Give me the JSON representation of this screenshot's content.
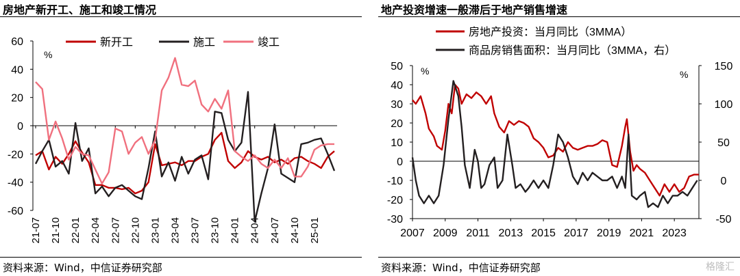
{
  "left_panel": {
    "title": "房地产新开工、施工和竣工情况",
    "source": "资料来源：Wind，中信证券研究部"
  },
  "right_panel": {
    "title": "地产投资增速一般滞后于地产销售增速",
    "source": "资料来源：Wind，中信证券研究部"
  },
  "watermark": "格隆汇",
  "chart_data": [
    {
      "type": "line",
      "title": "房地产新开工、施工和竣工情况",
      "ylabel": "%",
      "ylim": [
        -60,
        60
      ],
      "yticks": [
        60,
        40,
        20,
        0,
        -20,
        -40,
        -60
      ],
      "x_tick_labels": [
        "21-07",
        "21-10",
        "22-01",
        "22-04",
        "22-07",
        "22-10",
        "23-01",
        "23-04",
        "23-07",
        "23-10",
        "24-01",
        "24-04",
        "24-07",
        "24-10",
        "25-01"
      ],
      "x_months": [
        "21-07",
        "21-08",
        "21-09",
        "21-10",
        "21-11",
        "21-12",
        "22-01",
        "22-02",
        "22-03",
        "22-04",
        "22-05",
        "22-06",
        "22-07",
        "22-08",
        "22-09",
        "22-10",
        "22-11",
        "22-12",
        "23-01",
        "23-02",
        "23-03",
        "23-04",
        "23-05",
        "23-06",
        "23-07",
        "23-08",
        "23-09",
        "23-10",
        "23-11",
        "23-12",
        "24-01",
        "24-02",
        "24-03",
        "24-04",
        "24-05",
        "24-06",
        "24-07",
        "24-08",
        "24-09",
        "24-10",
        "24-11",
        "24-12",
        "25-01",
        "25-02",
        "25-03",
        "25-04"
      ],
      "legend_position": "top",
      "series": [
        {
          "name": "新开工",
          "color": "#c00000",
          "values": [
            -21,
            -18,
            -31,
            -22,
            -27,
            -20,
            -11,
            -19,
            -26,
            -42,
            -42,
            -44,
            -44,
            -45,
            -44,
            -48,
            -46,
            -40,
            -13,
            -28,
            -27,
            -26,
            -28,
            -25,
            -25,
            -22,
            -20,
            -10,
            -5,
            -25,
            -30,
            -26,
            -18,
            -22,
            -24,
            -22,
            -26,
            -24,
            -27,
            -23,
            -22,
            -25,
            -27,
            -30,
            -22,
            -18
          ]
        },
        {
          "name": "施工",
          "color": "#231f20",
          "values": [
            -27,
            -18,
            -10,
            -29,
            -25,
            -34,
            2,
            -25,
            -16,
            -48,
            -43,
            -50,
            -44,
            -42,
            -46,
            -50,
            -52,
            -30,
            -4,
            -36,
            -26,
            -39,
            -22,
            -34,
            -24,
            -21,
            -38,
            10,
            9,
            -10,
            -18,
            -12,
            24,
            -68,
            -48,
            -30,
            1,
            -34,
            -37,
            -40,
            -13,
            -12,
            -10,
            -9,
            -20,
            -32
          ]
        },
        {
          "name": "竣工",
          "color": "#f0707e",
          "values": [
            31,
            26,
            -10,
            3,
            -9,
            -24,
            -15,
            -20,
            -21,
            -31,
            -41,
            -33,
            -2,
            -4,
            -20,
            -12,
            -8,
            -20,
            -10,
            25,
            34,
            48,
            29,
            28,
            32,
            15,
            10,
            19,
            12,
            25,
            -18,
            -22,
            -25,
            -21,
            -27,
            -30,
            -24,
            -30,
            -23,
            -36,
            -36,
            -29,
            -17,
            -14,
            -13,
            -13
          ]
        }
      ]
    },
    {
      "type": "line",
      "title": "地产投资增速一般滞后于地产销售增速",
      "ylabel": "%",
      "y2label": "%",
      "ylim": [
        -30,
        50
      ],
      "y2lim": [
        -50,
        150
      ],
      "yticks": [
        50,
        40,
        30,
        20,
        10,
        0,
        -10,
        -20,
        -30
      ],
      "y2ticks": [
        150,
        100,
        50,
        0,
        -50
      ],
      "x_tick_labels": [
        "2007",
        "2009",
        "2011",
        "2013",
        "2015",
        "2017",
        "2019",
        "2021",
        "2023"
      ],
      "x_range": [
        2007.0,
        2024.5
      ],
      "legend_position": "top",
      "series": [
        {
          "name": "房地产投资：当月同比（3MMA）",
          "axis": "left",
          "color": "#c00000",
          "x": [
            2007.0,
            2007.2,
            2007.5,
            2007.8,
            2008.0,
            2008.3,
            2008.5,
            2008.8,
            2009.0,
            2009.2,
            2009.4,
            2009.6,
            2009.8,
            2010.0,
            2010.3,
            2010.6,
            2010.9,
            2011.2,
            2011.5,
            2011.8,
            2012.0,
            2012.3,
            2012.6,
            2012.9,
            2013.2,
            2013.5,
            2013.8,
            2014.1,
            2014.4,
            2014.7,
            2015.0,
            2015.3,
            2015.6,
            2015.9,
            2016.2,
            2016.5,
            2016.8,
            2017.1,
            2017.4,
            2017.7,
            2018.0,
            2018.3,
            2018.6,
            2018.9,
            2019.2,
            2019.5,
            2019.8,
            2020.0,
            2020.1,
            2020.3,
            2020.5,
            2020.7,
            2020.9,
            2021.2,
            2021.5,
            2021.8,
            2022.1,
            2022.4,
            2022.7,
            2023.0,
            2023.3,
            2023.6,
            2023.9,
            2024.2,
            2024.5
          ],
          "values": [
            32,
            30,
            34,
            25,
            17,
            13,
            8,
            6,
            16,
            30,
            25,
            40,
            38,
            30,
            35,
            33,
            36,
            34,
            30,
            34,
            25,
            18,
            15,
            21,
            19,
            21,
            20,
            18,
            12,
            10,
            7,
            2,
            3,
            7,
            5,
            10,
            7,
            6,
            7,
            8,
            8,
            9,
            11,
            10,
            -2,
            -3,
            8,
            18,
            22,
            5,
            -5,
            -2,
            -4,
            -6,
            -10,
            -14,
            -18,
            -12,
            -16,
            -12,
            -16,
            -14,
            -8,
            -7,
            -7
          ]
        },
        {
          "name": "商品房销售面积：当月同比（3MMA，右）",
          "axis": "right",
          "color": "#231f20",
          "x": [
            2007.0,
            2007.2,
            2007.4,
            2007.7,
            2008.0,
            2008.3,
            2008.6,
            2008.9,
            2009.2,
            2009.5,
            2009.8,
            2010.0,
            2010.2,
            2010.5,
            2010.8,
            2011.0,
            2011.2,
            2011.4,
            2011.7,
            2012.0,
            2012.2,
            2012.5,
            2012.8,
            2013.1,
            2013.3,
            2013.6,
            2013.9,
            2014.1,
            2014.4,
            2014.7,
            2015.0,
            2015.3,
            2015.6,
            2015.9,
            2016.2,
            2016.5,
            2016.8,
            2017.1,
            2017.4,
            2017.7,
            2018.0,
            2018.3,
            2018.6,
            2018.9,
            2019.2,
            2019.5,
            2019.8,
            2020.0,
            2020.2,
            2020.4,
            2020.7,
            2020.9,
            2021.2,
            2021.4,
            2021.7,
            2022.0,
            2022.3,
            2022.6,
            2022.9,
            2023.2,
            2023.5,
            2023.8,
            2024.1,
            2024.4
          ],
          "values": [
            30,
            0,
            -20,
            -30,
            -20,
            -30,
            -20,
            20,
            80,
            130,
            110,
            70,
            20,
            -10,
            40,
            25,
            -10,
            -5,
            20,
            30,
            -10,
            0,
            60,
            20,
            -10,
            -5,
            -15,
            -10,
            0,
            -10,
            0,
            -10,
            20,
            60,
            50,
            30,
            5,
            -5,
            10,
            0,
            10,
            5,
            0,
            0,
            5,
            -10,
            5,
            -10,
            60,
            -20,
            -25,
            -20,
            -15,
            -35,
            -30,
            -35,
            -20,
            -30,
            -20,
            -20,
            -15,
            -20,
            -10,
            0
          ]
        }
      ]
    }
  ]
}
